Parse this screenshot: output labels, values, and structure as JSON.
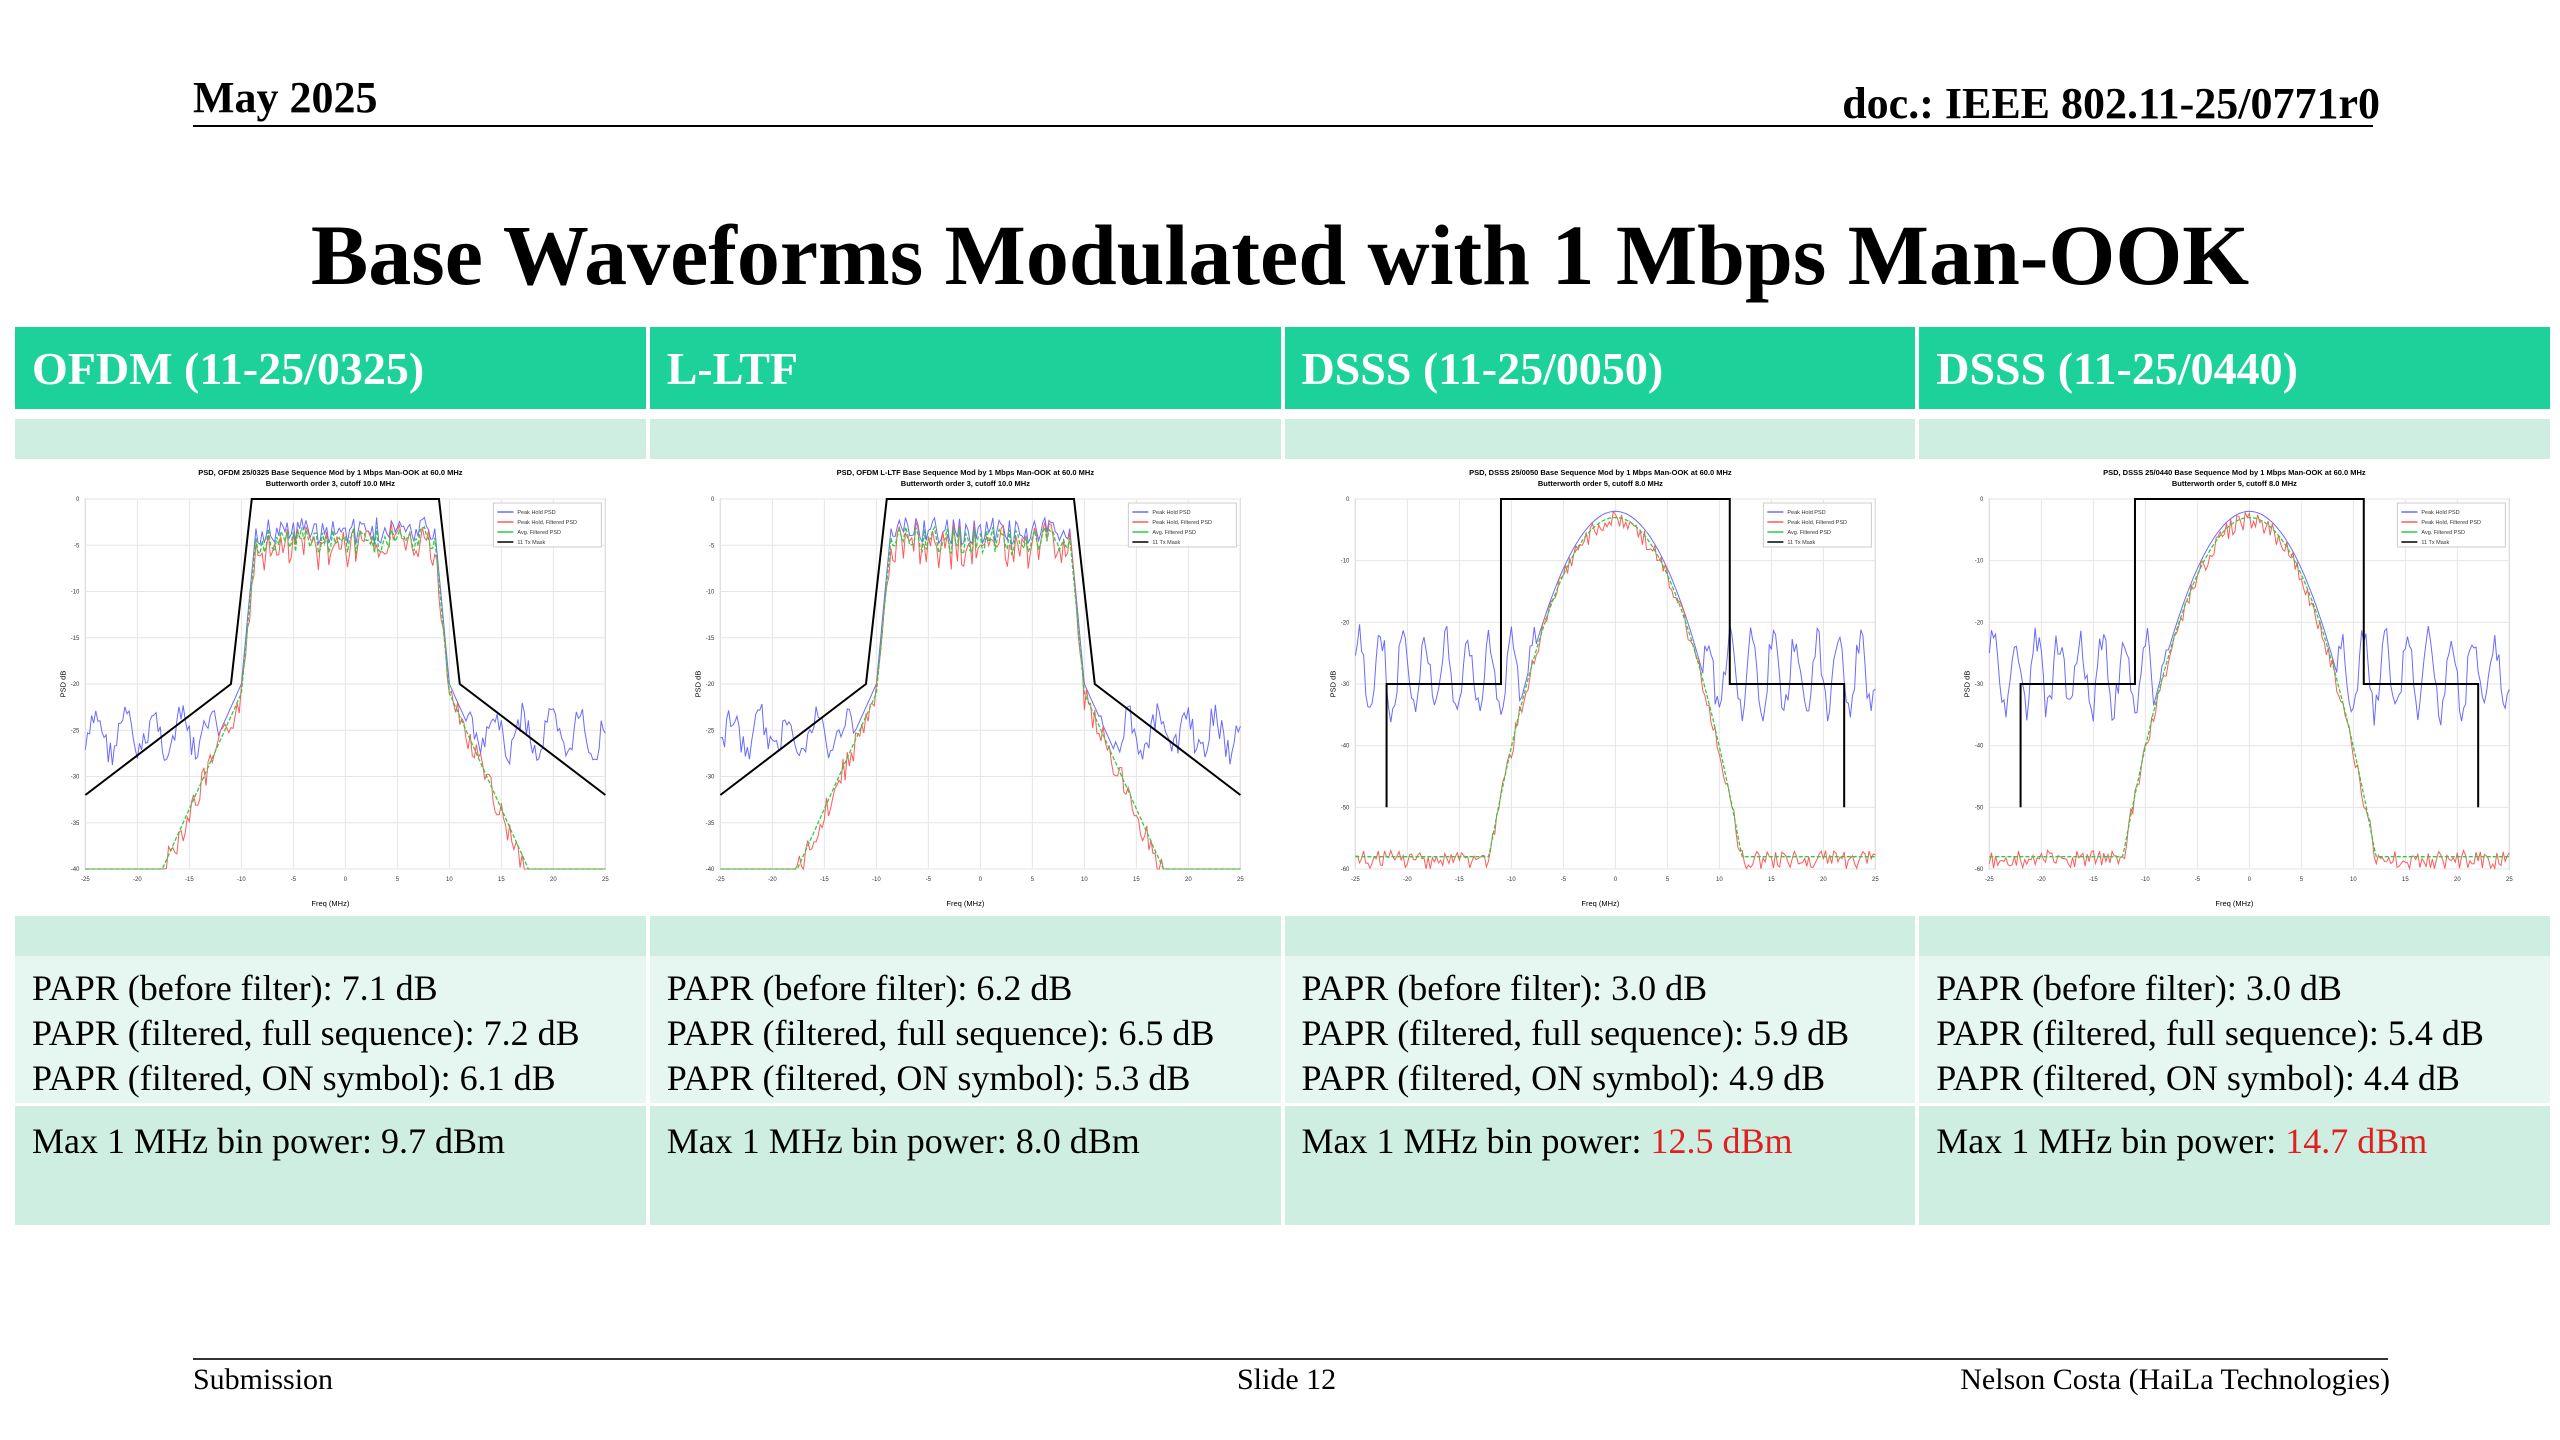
{
  "header": {
    "date": "May 2025",
    "doc": "doc.: IEEE 802.11-25/0771r0"
  },
  "title": "Base Waveforms Modulated with 1 Mbps Man-OOK",
  "columns": [
    {
      "heading": "OFDM (11-25/0325)",
      "plot_title": "PSD, OFDM 25/0325 Base Sequence Mod by 1 Mbps Man-OOK at 60.0 MHz",
      "plot_subtitle": "Butterworth order 3, cutoff 10.0 MHz",
      "papr_before": "PAPR (before filter): 7.1 dB",
      "papr_full": "PAPR (filtered, full sequence): 7.2 dB",
      "papr_on": "PAPR (filtered, ON symbol): 6.1 dB",
      "max_label": "Max 1 MHz bin power: ",
      "max_value": "9.7 dBm",
      "max_highlight": false
    },
    {
      "heading": "L-LTF",
      "plot_title": "PSD, OFDM L-LTF Base Sequence Mod by 1 Mbps Man-OOK at 60.0 MHz",
      "plot_subtitle": "Butterworth order 3, cutoff 10.0 MHz",
      "papr_before": "PAPR (before filter): 6.2 dB",
      "papr_full": "PAPR (filtered, full sequence): 6.5 dB",
      "papr_on": "PAPR (filtered, ON symbol): 5.3 dB",
      "max_label": "Max 1 MHz bin power: ",
      "max_value": "8.0 dBm",
      "max_highlight": false
    },
    {
      "heading": "DSSS (11-25/0050)",
      "plot_title": "PSD, DSSS 25/0050 Base Sequence Mod by 1 Mbps Man-OOK at 60.0 MHz",
      "plot_subtitle": "Butterworth order 5, cutoff 8.0 MHz",
      "papr_before": "PAPR (before filter): 3.0 dB",
      "papr_full": "PAPR (filtered, full sequence): 5.9 dB",
      "papr_on": "PAPR (filtered, ON symbol): 4.9 dB",
      "max_label": "Max 1 MHz bin power: ",
      "max_value": "12.5 dBm",
      "max_highlight": true
    },
    {
      "heading": "DSSS (11-25/0440)",
      "plot_title": "PSD, DSSS 25/0440 Base Sequence Mod by 1 Mbps Man-OOK at 60.0 MHz",
      "plot_subtitle": "Butterworth order 5, cutoff 8.0 MHz",
      "papr_before": "PAPR (before filter): 3.0 dB",
      "papr_full": "PAPR (filtered, full sequence): 5.4 dB",
      "papr_on": "PAPR (filtered, ON symbol): 4.4 dB",
      "max_label": "Max 1 MHz bin power: ",
      "max_value": "14.7 dBm",
      "max_highlight": true
    }
  ],
  "plot_common": {
    "xlabel": "Freq (MHz)",
    "ylabel": "PSD dB",
    "legend": [
      "Peak Hold PSD",
      "Peak Hold, Filtered PSD",
      "Avg. Filtered PSD",
      "11 Tx Mask"
    ],
    "colors": {
      "peak": "#6a6aff",
      "filtered": "#ff5a5a",
      "avg": "#2ecc40",
      "mask": "#000000"
    }
  },
  "footer": {
    "left": "Submission",
    "center": "Slide 12",
    "right": "Nelson Costa (HaiLa Technologies)"
  }
}
